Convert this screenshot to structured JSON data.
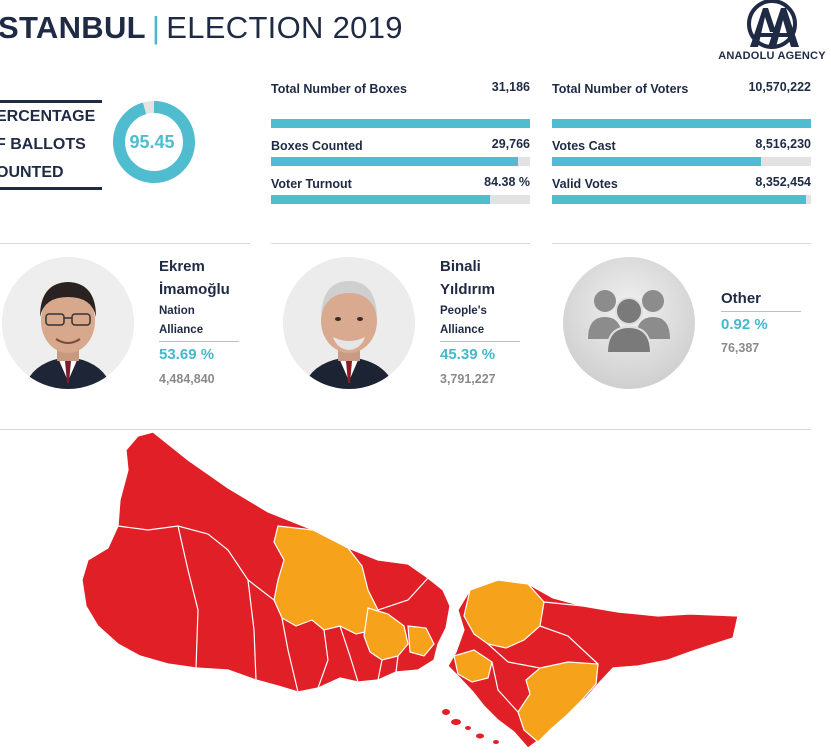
{
  "header": {
    "city": "STANBUL",
    "separator": "|",
    "subtitle": "ELECTION 2019"
  },
  "logo": {
    "mark": "AA",
    "agency": "ANADOLU AGENCY"
  },
  "counted": {
    "label_lines": [
      "ERCENTAGE",
      "F BALLOTS",
      "OUNTED"
    ],
    "value": "95.45",
    "unit": "%",
    "fraction": 0.9545
  },
  "stats_left": [
    {
      "label": "Total Number of Boxes",
      "value": "31,186",
      "fill": 1.0
    },
    {
      "label": "Boxes Counted",
      "value": "29,766",
      "fill": 0.9545
    },
    {
      "label": "Voter Turnout",
      "value": "84.38 %",
      "fill": 0.8438
    }
  ],
  "stats_right": [
    {
      "label": "Total Number of Voters",
      "value": "10,570,222",
      "fill": 1.0
    },
    {
      "label": "Votes Cast",
      "value": "8,516,230",
      "fill": 0.8057
    },
    {
      "label": "Valid Votes",
      "value": "8,352,454",
      "fill": 0.9808
    }
  ],
  "candidates": [
    {
      "name_line1": "Ekrem",
      "name_line2": "İmamoğlu",
      "alliance_line1": "Nation",
      "alliance_line2": "Alliance",
      "percent": "53.69 %",
      "votes": "4,484,840"
    },
    {
      "name_line1": "Binali",
      "name_line2": "Yıldırım",
      "alliance_line1": "People's",
      "alliance_line2": "Alliance",
      "percent": "45.39 %",
      "votes": "3,791,227"
    },
    {
      "name": "Other",
      "percent": "0.92 %",
      "votes": "76,387"
    }
  ],
  "colors": {
    "navy": "#1f2a44",
    "accent": "#4fbccf",
    "nation_alliance": "#e11f26",
    "peoples_alliance": "#f7a21b",
    "track": "#e2e2e2"
  },
  "icons": {
    "people": "group-people-icon"
  }
}
